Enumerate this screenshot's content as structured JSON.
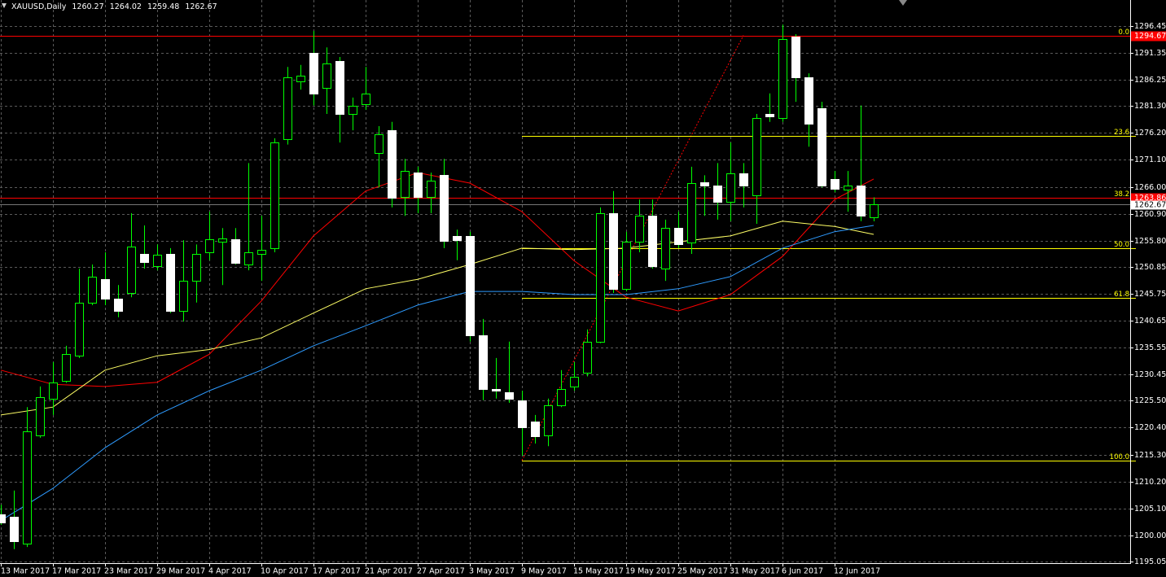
{
  "chart_data": {
    "type": "candlestick",
    "title": "XAUUSD,Daily",
    "categories": [
      "13 Mar 2017",
      null,
      null,
      null,
      "17 Mar 2017",
      null,
      null,
      null,
      "23 Mar 2017",
      null,
      null,
      null,
      "29 Mar 2017",
      null,
      null,
      null,
      "4 Apr 2017",
      null,
      null,
      null,
      "10 Apr 2017",
      null,
      null,
      null,
      "17 Apr 2017",
      null,
      null,
      null,
      "21 Apr 2017",
      null,
      null,
      null,
      "27 Apr 2017",
      null,
      null,
      null,
      "3 May 2017",
      null,
      null,
      null,
      "9 May 2017",
      null,
      null,
      null,
      "15 May 2017",
      null,
      null,
      null,
      "19 May 2017",
      null,
      null,
      null,
      "25 May 2017",
      null,
      null,
      null,
      "31 May 2017",
      null,
      null,
      null,
      "6 Jun 2017",
      null,
      null,
      null,
      "12 Jun 2017",
      null,
      null,
      null
    ],
    "open": [
      1204.0,
      1203.5,
      1198.4,
      1218.9,
      1225.9,
      1229.3,
      1234.0,
      1244.0,
      1248.5,
      1244.9,
      1245.9,
      1253.3,
      1251.0,
      1253.3,
      1242.5,
      1248.2,
      1253.6,
      1255.6,
      1256.0,
      1251.3,
      1253.3,
      1254.4,
      1275.1,
      1286.0,
      1291.4,
      1284.7,
      1289.8,
      1279.8,
      1281.7,
      1272.4,
      1276.7,
      1264.1,
      1268.7,
      1264.1,
      1268.2,
      1256.7,
      1256.7,
      1237.9,
      1227.7,
      1227.1,
      1225.6,
      1221.6,
      1218.9,
      1224.7,
      1228.2,
      1230.8,
      1236.7,
      1261.0,
      1246.6,
      1255.6,
      1260.5,
      1250.5,
      1258.2,
      1255.4,
      1266.9,
      1266.2,
      1263.1,
      1268.6,
      1264.4,
      1279.8,
      1279.0,
      1294.4,
      1286.7,
      1280.9,
      1267.5,
      1265.5,
      1266.2,
      1260.27
    ],
    "high": [
      1205.8,
      1208.5,
      1224.3,
      1228.2,
      1232.8,
      1235.9,
      1250.5,
      1251.3,
      1253.6,
      1247.4,
      1261.0,
      1258.7,
      1255.1,
      1254.4,
      1255.9,
      1255.1,
      1261.3,
      1258.2,
      1258.2,
      1270.5,
      1260.5,
      1275.2,
      1288.7,
      1289.1,
      1295.5,
      1292.4,
      1290.6,
      1282.9,
      1288.7,
      1277.5,
      1278.3,
      1271.3,
      1269.8,
      1268.7,
      1271.3,
      1257.9,
      1257.5,
      1241.0,
      1233.6,
      1236.7,
      1227.4,
      1222.8,
      1225.9,
      1231.3,
      1232.8,
      1239.0,
      1262.1,
      1265.2,
      1257.5,
      1263.6,
      1263.6,
      1259.8,
      1261.3,
      1269.8,
      1268.2,
      1270.5,
      1274.4,
      1270.5,
      1279.8,
      1283.7,
      1296.7,
      1294.9,
      1287.5,
      1282.1,
      1269.0,
      1269.0,
      1281.4,
      1264.02
    ],
    "low": [
      1202.0,
      1197.4,
      1197.8,
      1218.5,
      1222.8,
      1228.9,
      1233.6,
      1243.6,
      1243.6,
      1241.3,
      1245.1,
      1250.5,
      1250.2,
      1242.1,
      1240.5,
      1244.1,
      1252.1,
      1247.4,
      1251.3,
      1250.2,
      1248.2,
      1253.6,
      1274.0,
      1284.4,
      1281.4,
      1279.8,
      1274.4,
      1276.7,
      1280.6,
      1265.9,
      1262.1,
      1260.5,
      1261.0,
      1261.0,
      1254.4,
      1252.1,
      1236.7,
      1225.6,
      1225.9,
      1225.1,
      1215.1,
      1217.4,
      1216.9,
      1224.3,
      1227.4,
      1230.1,
      1236.4,
      1245.9,
      1246.2,
      1253.6,
      1250.5,
      1248.2,
      1254.4,
      1253.3,
      1260.5,
      1259.8,
      1259.5,
      1262.1,
      1259.0,
      1278.3,
      1278.3,
      1282.1,
      1273.6,
      1265.9,
      1265.0,
      1261.3,
      1259.5,
      1259.48
    ],
    "close": [
      1202.4,
      1198.9,
      1219.7,
      1226.2,
      1229.0,
      1234.3,
      1244.0,
      1249.0,
      1244.8,
      1242.5,
      1254.7,
      1251.8,
      1253.2,
      1242.5,
      1248.2,
      1253.3,
      1256.0,
      1256.2,
      1251.6,
      1253.6,
      1254.0,
      1274.4,
      1286.7,
      1287.1,
      1283.7,
      1289.4,
      1279.8,
      1281.4,
      1283.7,
      1275.9,
      1263.9,
      1269.0,
      1264.1,
      1267.2,
      1255.8,
      1255.9,
      1237.9,
      1227.7,
      1227.4,
      1225.9,
      1220.5,
      1218.8,
      1224.6,
      1227.7,
      1230.1,
      1236.7,
      1261.0,
      1246.6,
      1255.6,
      1260.5,
      1251.0,
      1258.2,
      1255.1,
      1266.7,
      1266.2,
      1263.1,
      1268.6,
      1266.2,
      1279.0,
      1279.3,
      1294.0,
      1286.7,
      1278.0,
      1266.2,
      1265.6,
      1266.2,
      1260.5,
      1262.67
    ],
    "bull_color": "#000000",
    "bear_color": "#ffffff",
    "wick_color": "#00ff00",
    "lines": [
      {
        "color": "#ff0000",
        "x": [
          0,
          4,
          8,
          12,
          16,
          20,
          24,
          28,
          32,
          36,
          40,
          44,
          48,
          52,
          56,
          60,
          64,
          67
        ],
        "values": [
          1231.3,
          1228.6,
          1228.2,
          1229.0,
          1234.3,
          1244.4,
          1256.7,
          1265.2,
          1268.7,
          1266.7,
          1261.3,
          1252.0,
          1245.1,
          1242.5,
          1245.6,
          1252.8,
          1263.6,
          1267.5
        ]
      },
      {
        "color": "#ffff66",
        "x": [
          0,
          4,
          8,
          12,
          16,
          20,
          24,
          28,
          32,
          36,
          40,
          44,
          48,
          52,
          56,
          60,
          64,
          67
        ],
        "values": [
          1222.8,
          1224.3,
          1231.3,
          1234.0,
          1235.2,
          1237.4,
          1242.1,
          1246.7,
          1248.5,
          1251.3,
          1254.4,
          1254.1,
          1254.4,
          1255.6,
          1256.7,
          1259.5,
          1258.5,
          1257.0
        ]
      },
      {
        "color": "#2e9bff",
        "x": [
          0,
          4,
          8,
          12,
          16,
          20,
          24,
          28,
          32,
          36,
          40,
          44,
          48,
          52,
          56,
          60,
          64,
          67
        ],
        "values": [
          1202.8,
          1208.9,
          1216.6,
          1222.8,
          1227.4,
          1231.3,
          1235.9,
          1239.7,
          1243.6,
          1246.2,
          1246.2,
          1245.6,
          1245.6,
          1246.7,
          1249.0,
          1254.4,
          1257.5,
          1258.7
        ]
      }
    ],
    "hlines": [
      {
        "value": 1294.67,
        "color": "#ff0000"
      },
      {
        "value": 1263.86,
        "color": "#ff0000"
      }
    ],
    "fibonacci": {
      "low": 1214.2,
      "high": 1294.67,
      "color": "#ffff00",
      "levels": [
        {
          "value": 0,
          "label": "0.0"
        },
        23.6,
        38.2,
        {
          "value": 50,
          "label": "50.0"
        },
        61.8,
        {
          "value": 100,
          "label": "100.0"
        }
      ]
    },
    "ylim": [
      1195.05,
      1301.38
    ],
    "yticks": [
      1296.45,
      1291.35,
      1286.25,
      {
        "value": 1281.3,
        "label": "1281.30"
      },
      {
        "value": 1276.2,
        "label": "1276.20"
      },
      {
        "value": 1271.1,
        "label": "1271.10"
      },
      {
        "value": 1266,
        "label": "1266.00"
      },
      {
        "value": 1260.9,
        "label": "1260.90"
      },
      {
        "value": 1255.8,
        "label": "1255.80"
      },
      1250.85,
      1245.75,
      1240.65,
      1235.55,
      1230.45,
      {
        "value": 1225.5,
        "label": "1225.50"
      },
      {
        "value": 1220.4,
        "label": "1220.40"
      },
      {
        "value": 1215.3,
        "label": "1215.30"
      },
      {
        "value": 1210.2,
        "label": "1210.20"
      },
      {
        "value": 1205.1,
        "label": "1205.10"
      },
      {
        "value": 1200,
        "label": "1200.00"
      },
      1195.05
    ],
    "grid": true
  }
}
